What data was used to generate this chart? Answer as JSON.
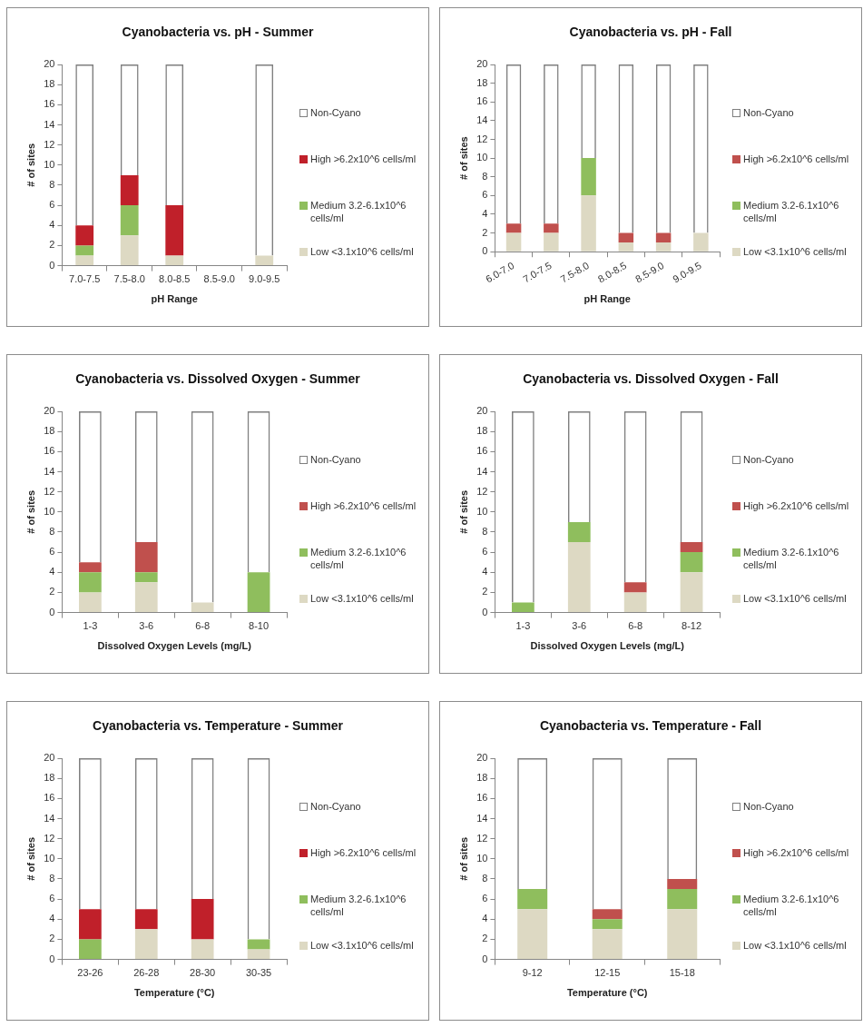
{
  "chart_data": [
    {
      "type": "bar",
      "title": "Cyanobacteria vs. pH - Summer",
      "xlabel": "pH Range",
      "ylabel": "# of sites",
      "categories": [
        "7.0-7.5",
        "7.5-8.0",
        "8.0-8.5",
        "8.5-9.0",
        "9.0-9.5"
      ],
      "stacked": true,
      "ylim": [
        0,
        20
      ],
      "yticks": [
        0,
        2,
        4,
        6,
        8,
        10,
        12,
        14,
        16,
        18,
        20
      ],
      "grid": false,
      "legend": "right",
      "series": [
        {
          "name": "Low <3.1x10^6 cells/ml",
          "color": "#ddd9c3",
          "values": [
            1,
            3,
            1,
            0,
            1
          ]
        },
        {
          "name": "Medium 3.2-6.1x10^6 cells/ml",
          "color": "#8fbe5d",
          "values": [
            1,
            3,
            0,
            0,
            0
          ]
        },
        {
          "name": "High >6.2x10^6 cells/ml",
          "color": "#c0202a",
          "values": [
            2,
            3,
            5,
            0,
            0
          ]
        },
        {
          "name": "Non-Cyano",
          "color": "#7f7f7f",
          "values": [
            16,
            11,
            14,
            0,
            19
          ]
        }
      ]
    },
    {
      "type": "bar",
      "title": "Cyanobacteria vs. pH - Fall",
      "xlabel": "pH Range",
      "ylabel": "# of sites",
      "categories": [
        "6.0-7.0",
        "7.0-7.5",
        "7.5-8.0",
        "8.0-8.5",
        "8.5-9.0",
        "9.0-9.5"
      ],
      "stacked": true,
      "ylim": [
        0,
        20
      ],
      "yticks": [
        0,
        2,
        4,
        6,
        8,
        10,
        12,
        14,
        16,
        18,
        20
      ],
      "grid": false,
      "legend": "right",
      "series": [
        {
          "name": "Low <3.1x10^6 cells/ml",
          "color": "#ddd9c3",
          "values": [
            2,
            2,
            6,
            1,
            1,
            2
          ]
        },
        {
          "name": "Medium 3.2-6.1x10^6 cells/ml",
          "color": "#8fbe5d",
          "values": [
            0,
            0,
            4,
            0,
            0,
            0
          ]
        },
        {
          "name": "High >6.2x10^6 cells/ml",
          "color": "#c0504d",
          "values": [
            1,
            1,
            0,
            1,
            1,
            0
          ]
        },
        {
          "name": "Non-Cyano",
          "color": "#7f7f7f",
          "values": [
            17,
            17,
            10,
            18,
            18,
            18
          ]
        }
      ]
    },
    {
      "type": "bar",
      "title": "Cyanobacteria vs. Dissolved Oxygen - Summer",
      "xlabel": "Dissolved Oxygen Levels (mg/L)",
      "ylabel": "# of sites",
      "categories": [
        "1-3",
        "3-6",
        "6-8",
        "8-10"
      ],
      "stacked": true,
      "ylim": [
        0,
        20
      ],
      "yticks": [
        0,
        2,
        4,
        6,
        8,
        10,
        12,
        14,
        16,
        18,
        20
      ],
      "grid": false,
      "legend": "right",
      "series": [
        {
          "name": "Low <3.1x10^6 cells/ml",
          "color": "#ddd9c3",
          "values": [
            2,
            3,
            1,
            0
          ]
        },
        {
          "name": "Medium 3.2-6.1x10^6 cells/ml",
          "color": "#8fbe5d",
          "values": [
            2,
            1,
            0,
            4
          ]
        },
        {
          "name": "High >6.2x10^6 cells/ml",
          "color": "#c0504d",
          "values": [
            1,
            3,
            0,
            0
          ]
        },
        {
          "name": "Non-Cyano",
          "color": "#7f7f7f",
          "values": [
            15,
            13,
            19,
            16
          ]
        }
      ]
    },
    {
      "type": "bar",
      "title": "Cyanobacteria vs. Dissolved Oxygen - Fall",
      "xlabel": "Dissolved Oxygen Levels (mg/L)",
      "ylabel": "# of sites",
      "categories": [
        "1-3",
        "3-6",
        "6-8",
        "8-12"
      ],
      "stacked": true,
      "ylim": [
        0,
        20
      ],
      "yticks": [
        0,
        2,
        4,
        6,
        8,
        10,
        12,
        14,
        16,
        18,
        20
      ],
      "grid": false,
      "legend": "right",
      "series": [
        {
          "name": "Low <3.1x10^6 cells/ml",
          "color": "#ddd9c3",
          "values": [
            0,
            7,
            2,
            4
          ]
        },
        {
          "name": "Medium 3.2-6.1x10^6 cells/ml",
          "color": "#8fbe5d",
          "values": [
            1,
            2,
            0,
            2
          ]
        },
        {
          "name": "High >6.2x10^6 cells/ml",
          "color": "#c0504d",
          "values": [
            0,
            0,
            1,
            1
          ]
        },
        {
          "name": "Non-Cyano",
          "color": "#7f7f7f",
          "values": [
            19,
            11,
            17,
            13
          ]
        }
      ]
    },
    {
      "type": "bar",
      "title": "Cyanobacteria vs. Temperature - Summer",
      "xlabel": "Temperature (°C)",
      "ylabel": "# of sites",
      "categories": [
        "23-26",
        "26-28",
        "28-30",
        "30-35"
      ],
      "stacked": true,
      "ylim": [
        0,
        20
      ],
      "yticks": [
        0,
        2,
        4,
        6,
        8,
        10,
        12,
        14,
        16,
        18,
        20
      ],
      "grid": false,
      "legend": "right",
      "series": [
        {
          "name": "Low <3.1x10^6 cells/ml",
          "color": "#ddd9c3",
          "values": [
            0,
            3,
            2,
            1
          ]
        },
        {
          "name": "Medium 3.2-6.1x10^6 cells/ml",
          "color": "#8fbe5d",
          "values": [
            2,
            0,
            0,
            1
          ]
        },
        {
          "name": "High >6.2x10^6 cells/ml",
          "color": "#c0202a",
          "values": [
            3,
            2,
            4,
            0
          ]
        },
        {
          "name": "Non-Cyano",
          "color": "#7f7f7f",
          "values": [
            15,
            15,
            14,
            18
          ]
        }
      ]
    },
    {
      "type": "bar",
      "title": "Cyanobacteria vs. Temperature - Fall",
      "xlabel": "Temperature (°C)",
      "ylabel": "# of sites",
      "categories": [
        "9-12",
        "12-15",
        "15-18"
      ],
      "stacked": true,
      "ylim": [
        0,
        20
      ],
      "yticks": [
        0,
        2,
        4,
        6,
        8,
        10,
        12,
        14,
        16,
        18,
        20
      ],
      "grid": false,
      "legend": "right",
      "series": [
        {
          "name": "Low <3.1x10^6 cells/ml",
          "color": "#ddd9c3",
          "values": [
            5,
            3,
            5
          ]
        },
        {
          "name": "Medium 3.2-6.1x10^6 cells/ml",
          "color": "#8fbe5d",
          "values": [
            2,
            1,
            2
          ]
        },
        {
          "name": "High >6.2x10^6 cells/ml",
          "color": "#c0504d",
          "values": [
            0,
            1,
            1
          ]
        },
        {
          "name": "Non-Cyano",
          "color": "#7f7f7f",
          "values": [
            13,
            15,
            12
          ]
        }
      ]
    }
  ]
}
